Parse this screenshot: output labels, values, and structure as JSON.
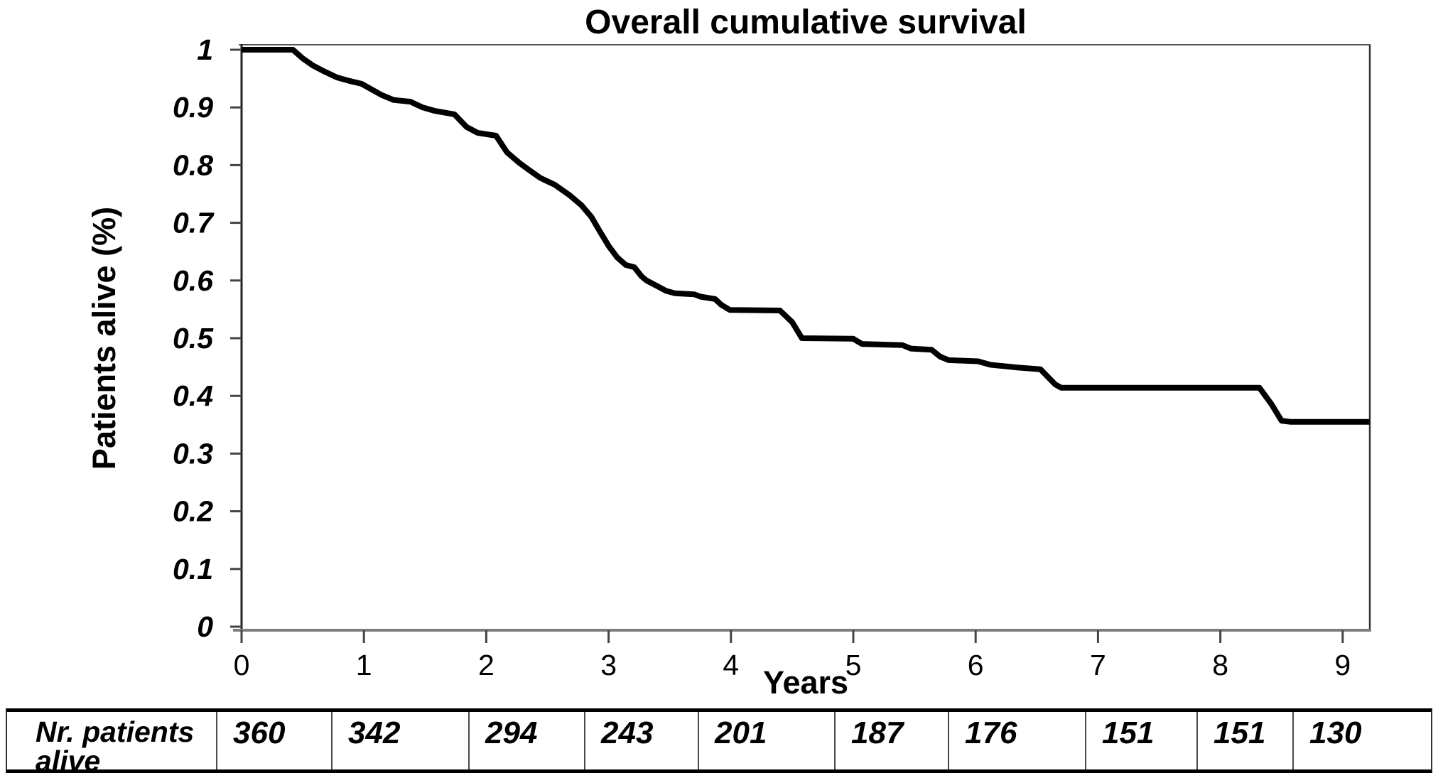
{
  "title": "Overall cumulative survival",
  "y_axis": {
    "label": "Patients alive (%)",
    "ticks": [
      "1",
      "0.9",
      "0.8",
      "0.7",
      "0.6",
      "0.5",
      "0.4",
      "0.3",
      "0.2",
      "0.1",
      "0"
    ],
    "tick_values": [
      1,
      0.9,
      0.8,
      0.7,
      0.6,
      0.5,
      0.4,
      0.3,
      0.2,
      0.1,
      0
    ],
    "range": [
      0,
      1
    ]
  },
  "x_axis": {
    "label": "Years",
    "ticks": [
      "0",
      "1",
      "2",
      "3",
      "4",
      "5",
      "6",
      "7",
      "8",
      "9"
    ],
    "tick_values": [
      0,
      1,
      2,
      3,
      4,
      5,
      6,
      7,
      8,
      9
    ],
    "range": [
      0,
      9.22
    ]
  },
  "chart_data": {
    "type": "line",
    "title": "Overall cumulative survival",
    "xlabel": "Years",
    "ylabel": "Patients alive (%)",
    "xlim": [
      0,
      9.22
    ],
    "ylim": [
      0,
      1
    ],
    "grid": false,
    "legend": "none",
    "line_color": "#000000",
    "series": [
      {
        "name": "Overall cumulative survival",
        "points": [
          [
            0,
            1.0
          ],
          [
            0.42,
            1.0
          ],
          [
            0.5,
            0.985
          ],
          [
            0.58,
            0.973
          ],
          [
            0.68,
            0.962
          ],
          [
            0.78,
            0.952
          ],
          [
            0.88,
            0.946
          ],
          [
            0.98,
            0.941
          ],
          [
            1.04,
            0.934
          ],
          [
            1.14,
            0.922
          ],
          [
            1.24,
            0.913
          ],
          [
            1.38,
            0.91
          ],
          [
            1.48,
            0.9
          ],
          [
            1.58,
            0.894
          ],
          [
            1.74,
            0.888
          ],
          [
            1.84,
            0.866
          ],
          [
            1.93,
            0.856
          ],
          [
            2.08,
            0.851
          ],
          [
            2.17,
            0.822
          ],
          [
            2.27,
            0.804
          ],
          [
            2.36,
            0.79
          ],
          [
            2.44,
            0.778
          ],
          [
            2.56,
            0.766
          ],
          [
            2.68,
            0.748
          ],
          [
            2.78,
            0.73
          ],
          [
            2.86,
            0.71
          ],
          [
            2.92,
            0.688
          ],
          [
            3.0,
            0.66
          ],
          [
            3.07,
            0.64
          ],
          [
            3.14,
            0.627
          ],
          [
            3.21,
            0.623
          ],
          [
            3.27,
            0.607
          ],
          [
            3.31,
            0.6
          ],
          [
            3.4,
            0.59
          ],
          [
            3.47,
            0.582
          ],
          [
            3.54,
            0.578
          ],
          [
            3.7,
            0.576
          ],
          [
            3.75,
            0.572
          ],
          [
            3.87,
            0.568
          ],
          [
            3.92,
            0.558
          ],
          [
            3.99,
            0.549
          ],
          [
            4.4,
            0.548
          ],
          [
            4.5,
            0.528
          ],
          [
            4.58,
            0.5
          ],
          [
            5.0,
            0.499
          ],
          [
            5.07,
            0.49
          ],
          [
            5.4,
            0.488
          ],
          [
            5.47,
            0.482
          ],
          [
            5.64,
            0.48
          ],
          [
            5.71,
            0.468
          ],
          [
            5.78,
            0.462
          ],
          [
            6.02,
            0.46
          ],
          [
            6.12,
            0.454
          ],
          [
            6.35,
            0.449
          ],
          [
            6.53,
            0.446
          ],
          [
            6.65,
            0.42
          ],
          [
            6.7,
            0.414
          ],
          [
            8.32,
            0.414
          ],
          [
            8.42,
            0.385
          ],
          [
            8.5,
            0.357
          ],
          [
            8.57,
            0.355
          ],
          [
            9.22,
            0.355
          ]
        ]
      }
    ]
  },
  "risk_table": {
    "label": "Nr. patients alive",
    "values": [
      "360",
      "342",
      "294",
      "243",
      "201",
      "187",
      "176",
      "151",
      "151",
      "130"
    ]
  }
}
